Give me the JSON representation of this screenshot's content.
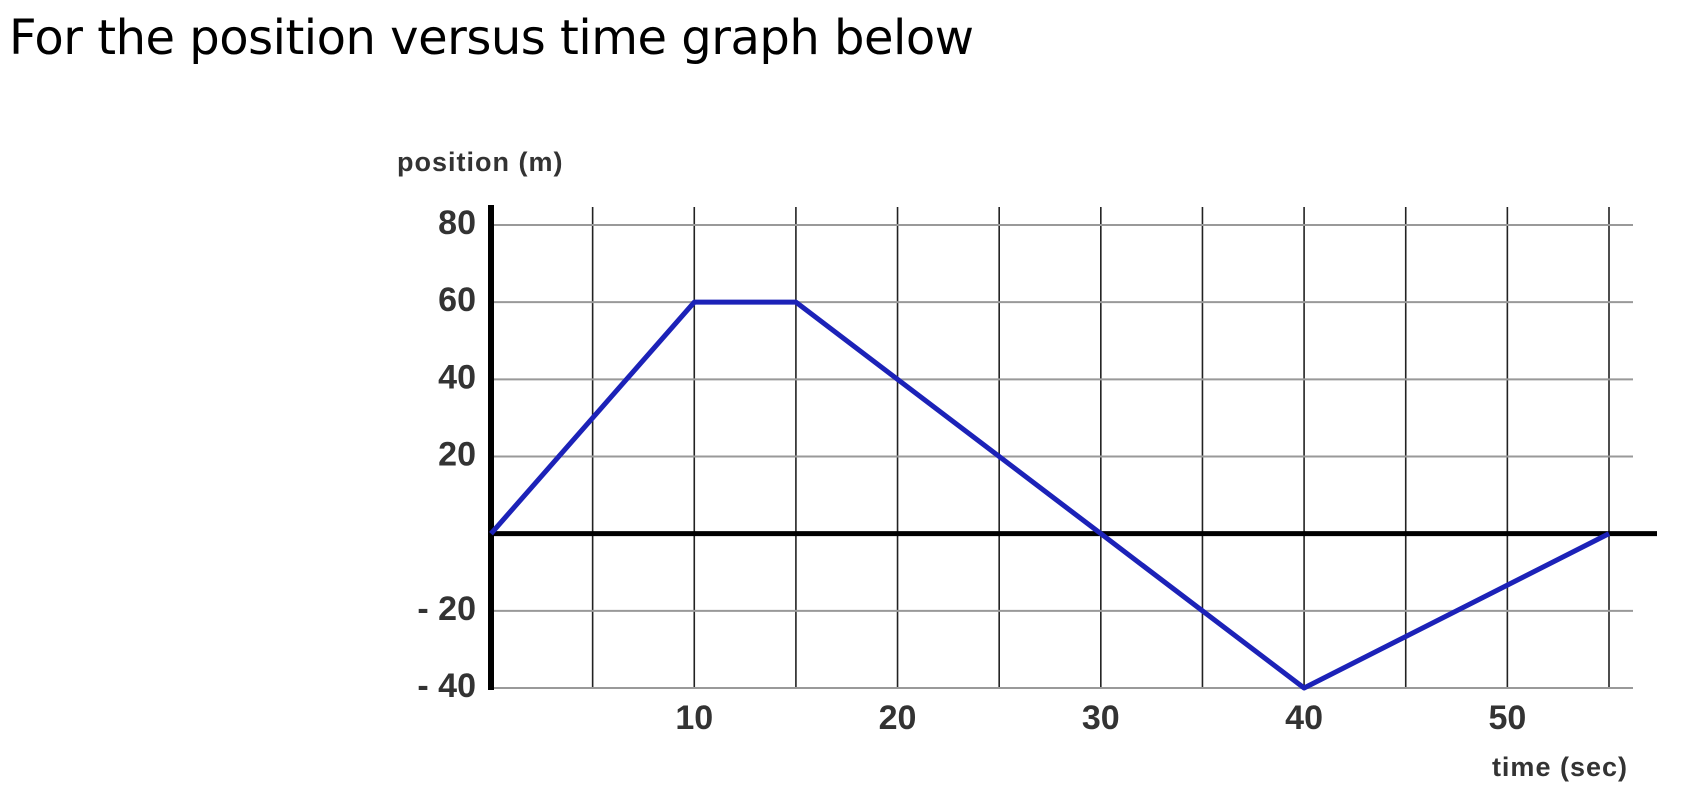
{
  "heading": "For the position versus time graph below",
  "chart_data": {
    "type": "line",
    "y_label": "position (m)",
    "x_label": "time (sec)",
    "x": [
      0,
      10,
      15,
      30,
      40,
      55
    ],
    "series": [
      {
        "color": "#1c22b8",
        "values": [
          0,
          60,
          60,
          0,
          -40,
          0
        ]
      }
    ],
    "xlim": [
      0,
      55
    ],
    "ylim": [
      -40,
      80
    ],
    "xticks": [
      10,
      20,
      30,
      40,
      50
    ],
    "x_minor_ticks": [
      5,
      15,
      25,
      35,
      45,
      55
    ],
    "yticks": [
      80,
      60,
      40,
      20,
      {
        "value": -20,
        "label": "- 20"
      },
      {
        "value": -40,
        "label": "- 40"
      }
    ],
    "grid": true
  }
}
